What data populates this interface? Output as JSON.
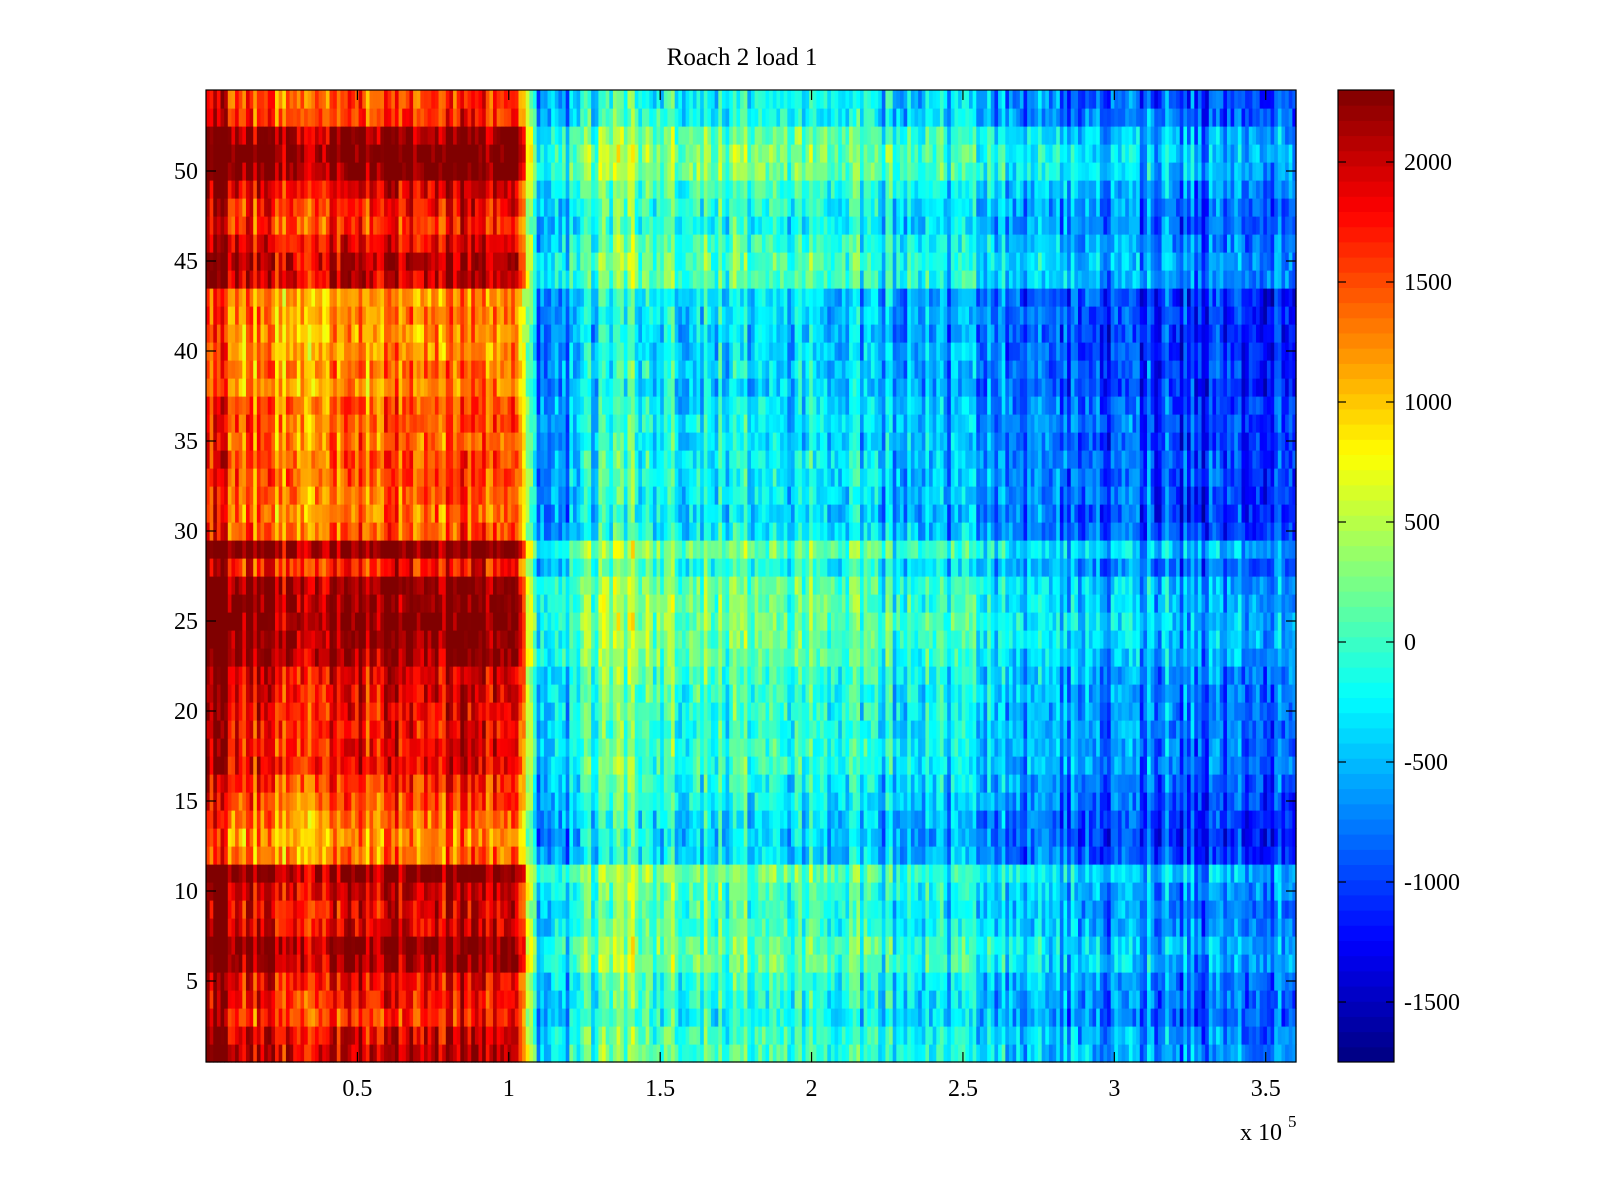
{
  "chart_data": {
    "type": "heatmap",
    "title": "Roach 2 load 1",
    "xlabel": "",
    "ylabel": "",
    "x_multiplier_label": "x 10",
    "x_multiplier_exponent": "5",
    "xlim": [
      0,
      3.6
    ],
    "ylim": [
      0.5,
      54.5
    ],
    "x_ticks": [
      0.5,
      1,
      1.5,
      2,
      2.5,
      3,
      3.5
    ],
    "x_tick_labels": [
      "0.5",
      "1",
      "1.5",
      "2",
      "2.5",
      "3",
      "3.5"
    ],
    "y_ticks": [
      5,
      10,
      15,
      20,
      25,
      30,
      35,
      40,
      45,
      50
    ],
    "y_tick_labels": [
      "5",
      "10",
      "15",
      "20",
      "25",
      "30",
      "35",
      "40",
      "45",
      "50"
    ],
    "rows": 54,
    "colormap": "jet",
    "clim": [
      -1750,
      2300
    ],
    "colorbar": {
      "ticks": [
        -1500,
        -1000,
        -500,
        0,
        500,
        1000,
        1500,
        2000
      ],
      "tick_labels": [
        "-1500",
        "-1000",
        "-500",
        "0",
        "500",
        "1000",
        "1500",
        "2000"
      ],
      "placement": "right"
    },
    "column_profile": {
      "x": [
        0,
        0.1,
        0.3,
        0.5,
        0.7,
        0.9,
        1.03,
        1.06,
        1.1,
        1.2,
        1.35,
        1.5,
        1.8,
        2.1,
        2.4,
        2.7,
        3.0,
        3.3,
        3.6
      ],
      "value": [
        2100,
        1800,
        1400,
        1700,
        1750,
        1800,
        1750,
        800,
        -500,
        -400,
        200,
        0,
        -100,
        -200,
        -350,
        -600,
        -750,
        -850,
        -950
      ]
    },
    "row_offsets": [
      {
        "row": 1,
        "offset": 300
      },
      {
        "row": 2,
        "offset": 200
      },
      {
        "row": 3,
        "offset": -100
      },
      {
        "row": 4,
        "offset": 0
      },
      {
        "row": 5,
        "offset": 100
      },
      {
        "row": 6,
        "offset": 450
      },
      {
        "row": 7,
        "offset": 500
      },
      {
        "row": 8,
        "offset": 200
      },
      {
        "row": 9,
        "offset": 150
      },
      {
        "row": 10,
        "offset": 300
      },
      {
        "row": 11,
        "offset": 550
      },
      {
        "row": 12,
        "offset": -400
      },
      {
        "row": 13,
        "offset": -500
      },
      {
        "row": 14,
        "offset": -400
      },
      {
        "row": 15,
        "offset": -200
      },
      {
        "row": 16,
        "offset": -100
      },
      {
        "row": 17,
        "offset": 100
      },
      {
        "row": 18,
        "offset": 100
      },
      {
        "row": 19,
        "offset": 50
      },
      {
        "row": 20,
        "offset": 100
      },
      {
        "row": 21,
        "offset": 150
      },
      {
        "row": 22,
        "offset": 200
      },
      {
        "row": 23,
        "offset": 450
      },
      {
        "row": 24,
        "offset": 550
      },
      {
        "row": 25,
        "offset": 600
      },
      {
        "row": 26,
        "offset": 550
      },
      {
        "row": 27,
        "offset": 500
      },
      {
        "row": 28,
        "offset": 0
      },
      {
        "row": 29,
        "offset": 550
      },
      {
        "row": 30,
        "offset": -300
      },
      {
        "row": 31,
        "offset": -400
      },
      {
        "row": 32,
        "offset": -300
      },
      {
        "row": 33,
        "offset": -250
      },
      {
        "row": 34,
        "offset": -200
      },
      {
        "row": 35,
        "offset": -350
      },
      {
        "row": 36,
        "offset": -250
      },
      {
        "row": 37,
        "offset": -300
      },
      {
        "row": 38,
        "offset": -500
      },
      {
        "row": 39,
        "offset": -400
      },
      {
        "row": 40,
        "offset": -500
      },
      {
        "row": 41,
        "offset": -550
      },
      {
        "row": 42,
        "offset": -450
      },
      {
        "row": 43,
        "offset": -500
      },
      {
        "row": 44,
        "offset": 300
      },
      {
        "row": 45,
        "offset": 350
      },
      {
        "row": 46,
        "offset": 150
      },
      {
        "row": 47,
        "offset": -100
      },
      {
        "row": 48,
        "offset": 0
      },
      {
        "row": 49,
        "offset": 200
      },
      {
        "row": 50,
        "offset": 600
      },
      {
        "row": 51,
        "offset": 650
      },
      {
        "row": 52,
        "offset": 450
      },
      {
        "row": 53,
        "offset": -100
      },
      {
        "row": 54,
        "offset": -200
      }
    ],
    "grid": false
  }
}
